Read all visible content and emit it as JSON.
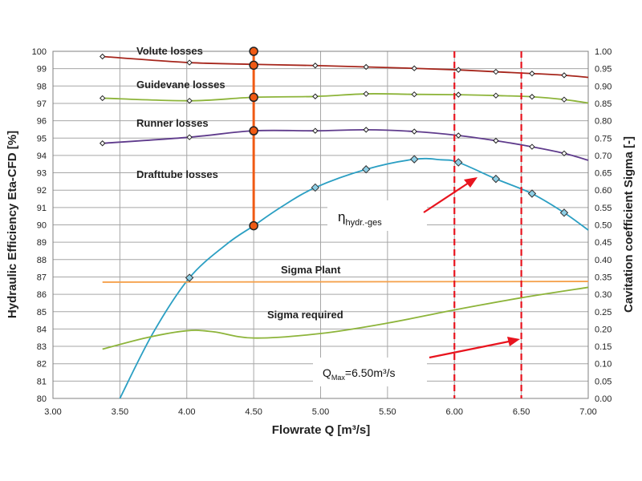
{
  "chart_data": {
    "type": "line",
    "xlabel": "Flowrate Q [m³/s]",
    "ylabel": "Hydraulic Efficiency Eta-CFD [%]",
    "y2label": "Cavitation coefficient Sigma [-]",
    "xlim": [
      3.0,
      7.0
    ],
    "ylim": [
      80,
      100
    ],
    "y2lim": [
      0.0,
      1.0
    ],
    "xticks": [
      "3.00",
      "3.50",
      "4.00",
      "4.50",
      "5.00",
      "5.50",
      "6.00",
      "6.50",
      "7.00"
    ],
    "yticks": [
      "80",
      "81",
      "82",
      "83",
      "84",
      "85",
      "86",
      "87",
      "88",
      "89",
      "90",
      "91",
      "92",
      "93",
      "94",
      "95",
      "96",
      "97",
      "98",
      "99",
      "100"
    ],
    "y2ticks": [
      "0.00",
      "0.05",
      "0.10",
      "0.15",
      "0.20",
      "0.25",
      "0.30",
      "0.35",
      "0.40",
      "0.45",
      "0.50",
      "0.55",
      "0.60",
      "0.65",
      "0.70",
      "0.75",
      "0.80",
      "0.85",
      "0.90",
      "0.95",
      "1.00"
    ],
    "grid": true,
    "colors": {
      "volute": "#a6261c",
      "guidevane": "#8db43a",
      "runner": "#5f3b8c",
      "efficiency": "#2b9fc3",
      "sigma_plant": "#f5a04a",
      "sigma_required": "#8db43a",
      "loss_bar": "#f05a14",
      "arrow": "#e8141e",
      "qmax_line": "#e8141e"
    },
    "series": [
      {
        "key": "volute",
        "axis": "y",
        "marker": "diamond",
        "x": [
          3.37,
          4.02,
          4.5,
          4.96,
          5.34,
          5.7,
          6.03,
          6.31,
          6.58,
          6.82,
          7.0
        ],
        "y": [
          99.7,
          99.35,
          99.25,
          99.18,
          99.1,
          99.02,
          98.93,
          98.82,
          98.72,
          98.62,
          98.5
        ]
      },
      {
        "key": "guidevane",
        "axis": "y",
        "marker": "diamond",
        "x": [
          3.37,
          4.02,
          4.5,
          4.96,
          5.34,
          5.7,
          6.03,
          6.31,
          6.58,
          6.82,
          7.0
        ],
        "y": [
          97.3,
          97.15,
          97.35,
          97.4,
          97.55,
          97.52,
          97.5,
          97.45,
          97.38,
          97.22,
          97.02
        ]
      },
      {
        "key": "runner",
        "axis": "y",
        "marker": "diamond",
        "x": [
          3.37,
          4.02,
          4.5,
          4.96,
          5.34,
          5.7,
          6.03,
          6.31,
          6.58,
          6.82,
          7.0
        ],
        "y": [
          94.7,
          95.05,
          95.42,
          95.42,
          95.48,
          95.38,
          95.15,
          94.85,
          94.5,
          94.12,
          93.72
        ]
      },
      {
        "key": "efficiency",
        "axis": "y",
        "marker": "diamond-large",
        "x": [
          3.5,
          3.75,
          4.02,
          4.3,
          4.5,
          4.7,
          4.96,
          5.34,
          5.7,
          5.9,
          6.03,
          6.31,
          6.58,
          6.82,
          7.0
        ],
        "y": [
          80.0,
          83.8,
          86.95,
          88.9,
          89.95,
          91.0,
          92.15,
          93.2,
          93.78,
          93.75,
          93.6,
          92.65,
          91.8,
          90.7,
          89.7
        ],
        "marked_x": [
          4.02,
          4.96,
          5.34,
          5.7,
          6.03,
          6.31,
          6.58,
          6.82
        ]
      },
      {
        "key": "sigma_plant",
        "axis": "y2",
        "marker": "none",
        "x": [
          3.37,
          7.0
        ],
        "y": [
          0.335,
          0.337
        ]
      },
      {
        "key": "sigma_required",
        "axis": "y2",
        "marker": "none",
        "x": [
          3.37,
          3.7,
          4.0,
          4.2,
          4.5,
          5.0,
          5.5,
          6.0,
          6.5,
          7.0
        ],
        "y": [
          0.142,
          0.175,
          0.195,
          0.192,
          0.174,
          0.187,
          0.217,
          0.255,
          0.29,
          0.32
        ]
      }
    ],
    "loss_bar": {
      "x": 4.5,
      "y": [
        100.0,
        99.2,
        97.35,
        95.42,
        89.95
      ]
    },
    "qmax_lines": [
      6.0,
      6.5
    ],
    "annotations": {
      "volute": "Volute losses",
      "guidevane": "Guidevane losses",
      "runner": "Runner losses",
      "drafttube": "Drafttube losses",
      "sigma_plant": "Sigma Plant",
      "sigma_required": "Sigma required",
      "eta_main": "η",
      "eta_sub": "hydr.-ges",
      "qmax_main": "Q",
      "qmax_sub": "Max",
      "qmax_value": "=6.50m³/s"
    }
  }
}
